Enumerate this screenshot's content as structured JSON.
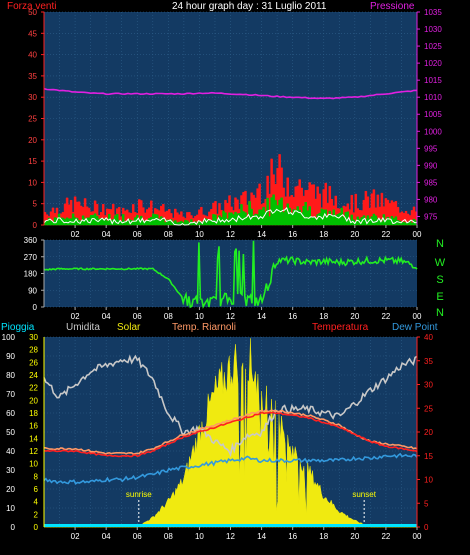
{
  "title": "24 hour graph day : 31 Luglio 2011",
  "colors": {
    "bg": "#000000",
    "plot": "#133a63",
    "grid": "#2e5f8a",
    "wind": "#ff1a1a",
    "gust": "#00c000",
    "wind_avg": "#ffffff",
    "pressure": "#e020e0",
    "direction": "#22ee22",
    "rain": "#00e5ff",
    "humidity": "#c8c8c8",
    "solar": "#f0ea10",
    "app_temp": "#ff9966",
    "temperature": "#ff2020",
    "dewpoint": "#3399dd",
    "rh_axis": "#ffffff",
    "temp_axis": "#ff2020",
    "solar_axis": "#ffff00"
  },
  "chart_data": [
    {
      "type": "line",
      "panel": "wind-pressure",
      "title": "24 hour graph day : 31 Luglio 2011",
      "x_ticks": [
        "02",
        "04",
        "06",
        "08",
        "10",
        "12",
        "14",
        "16",
        "18",
        "20",
        "22",
        "00"
      ],
      "y_left_label": "Forza venti",
      "y_left_ticks": [
        0,
        5,
        10,
        15,
        20,
        25,
        30,
        35,
        40,
        45,
        50
      ],
      "y_left_lim": [
        0,
        50
      ],
      "y_right_label": "Pressione",
      "y_right_ticks": [
        975,
        980,
        985,
        990,
        995,
        1000,
        1005,
        1010,
        1015,
        1020,
        1025,
        1030,
        1035
      ],
      "y_right_lim": [
        972.5,
        1035
      ],
      "x_hours": [
        0,
        1,
        2,
        3,
        4,
        5,
        6,
        7,
        8,
        9,
        10,
        11,
        12,
        13,
        14,
        15,
        16,
        17,
        18,
        19,
        20,
        21,
        22,
        23,
        24
      ],
      "series": [
        {
          "name": "Forza venti",
          "values": [
            3,
            4,
            5,
            4,
            4,
            3,
            5,
            4,
            3,
            2,
            3,
            4,
            5,
            6,
            9,
            12,
            10,
            8,
            7,
            6,
            5,
            6,
            5,
            4,
            3
          ]
        },
        {
          "name": "",
          "values": [
            1,
            2,
            2,
            2,
            2,
            2,
            2,
            2,
            1,
            1,
            1,
            2,
            3,
            4,
            4,
            6,
            5,
            4,
            3,
            3,
            2,
            2,
            2,
            1,
            1
          ]
        },
        {
          "name": "",
          "values": [
            1,
            1,
            1,
            1,
            1,
            1,
            1,
            1,
            1,
            0,
            1,
            1,
            1,
            2,
            2,
            4,
            3,
            2,
            2,
            2,
            1,
            1,
            1,
            1,
            1
          ]
        },
        {
          "name": "Pressione",
          "values": [
            1012.5,
            1012,
            1011.5,
            1011.2,
            1011,
            1011,
            1011,
            1011,
            1011,
            1011,
            1011.2,
            1011.2,
            1011,
            1010.8,
            1010.5,
            1010.2,
            1010,
            1009.8,
            1009.6,
            1009.8,
            1010,
            1010.5,
            1011,
            1011.5,
            1012
          ]
        }
      ]
    },
    {
      "type": "line",
      "panel": "wind-direction",
      "x_ticks": [
        "02",
        "04",
        "06",
        "08",
        "10",
        "12",
        "14",
        "16",
        "18",
        "20",
        "22",
        "00"
      ],
      "y_ticks": [
        0,
        90,
        180,
        270,
        360
      ],
      "y_lim": [
        0,
        360
      ],
      "compass": [
        "N",
        "W",
        "S",
        "E",
        "N"
      ],
      "x_hours": [
        0,
        1,
        2,
        3,
        4,
        5,
        6,
        7,
        8,
        9,
        10,
        11,
        12,
        13,
        14,
        15,
        16,
        17,
        18,
        19,
        20,
        21,
        22,
        23,
        24
      ],
      "series": [
        {
          "name": "",
          "values": [
            200,
            205,
            205,
            205,
            205,
            205,
            205,
            205,
            150,
            40,
            20,
            25,
            50,
            40,
            30,
            250,
            250,
            240,
            245,
            240,
            245,
            250,
            250,
            245,
            220
          ]
        }
      ]
    },
    {
      "type": "line",
      "panel": "temperature-humidity-solar",
      "x_ticks": [
        "02",
        "04",
        "06",
        "08",
        "10",
        "12",
        "14",
        "16",
        "18",
        "20",
        "22",
        "00"
      ],
      "legend": [
        "Pioggia",
        "Umidita",
        "Solar",
        "Temp. Riarnoli",
        "Temperatura",
        "Dew Point"
      ],
      "y_left_ticks": [
        0,
        10,
        20,
        30,
        40,
        50,
        60,
        70,
        80,
        90,
        100
      ],
      "y_left_lim": [
        0,
        100
      ],
      "y_solar_ticks": [
        0,
        2,
        4,
        6,
        8,
        10,
        12,
        14,
        16,
        18,
        20,
        22,
        24,
        26,
        28,
        30
      ],
      "y_solar_lim": [
        0,
        30
      ],
      "y_right_ticks": [
        0,
        5,
        10,
        15,
        20,
        25,
        30,
        35,
        40
      ],
      "y_right_lim": [
        0,
        40
      ],
      "annotations": [
        "sunrise",
        "sunset"
      ],
      "sunrise_hour": 6.1,
      "sunset_hour": 20.6,
      "x_hours": [
        0,
        1,
        2,
        3,
        4,
        5,
        6,
        7,
        8,
        9,
        10,
        11,
        12,
        13,
        14,
        15,
        16,
        17,
        18,
        19,
        20,
        21,
        22,
        23,
        24
      ],
      "series": [
        {
          "name": "Pioggia",
          "values": [
            0,
            0,
            0,
            0,
            0,
            0,
            0,
            0,
            0,
            0,
            0,
            0,
            0,
            0,
            0,
            0,
            0,
            0,
            0,
            0,
            0,
            0,
            0,
            0,
            0
          ]
        },
        {
          "name": "Umidita",
          "values": [
            78,
            68,
            75,
            82,
            85,
            88,
            88,
            78,
            60,
            50,
            52,
            45,
            40,
            48,
            50,
            62,
            62,
            62,
            60,
            58,
            65,
            72,
            78,
            85,
            88
          ]
        },
        {
          "name": "Solar",
          "values": [
            0,
            0,
            0,
            0,
            0,
            0,
            0,
            1.5,
            4,
            7.5,
            15,
            21,
            25,
            28,
            21,
            17,
            12,
            9,
            5,
            2.5,
            1,
            0,
            0,
            0,
            0
          ]
        },
        {
          "name": "Temp. Riarnoli",
          "values": [
            16.5,
            16.5,
            16.5,
            16,
            15.5,
            15.5,
            15.5,
            16.5,
            18,
            19.5,
            20.5,
            21.5,
            22.5,
            23.5,
            24.5,
            24.5,
            24,
            23.5,
            22.5,
            21.5,
            19.5,
            18,
            17.5,
            17,
            16.5
          ]
        },
        {
          "name": "Temperatura",
          "values": [
            16,
            16,
            16,
            15.5,
            15,
            15,
            15,
            16,
            17.5,
            19,
            20,
            21,
            22,
            23,
            24,
            24,
            23.5,
            23,
            22,
            21,
            19.5,
            18,
            17,
            16.5,
            16
          ]
        },
        {
          "name": "Dew Point",
          "values": [
            10,
            9.5,
            9.5,
            9.5,
            10,
            10,
            10.5,
            11,
            12,
            12.5,
            13,
            13.5,
            14,
            14.5,
            14,
            14,
            14,
            14,
            14,
            14,
            14.5,
            14.5,
            15,
            15,
            15
          ]
        }
      ]
    }
  ]
}
